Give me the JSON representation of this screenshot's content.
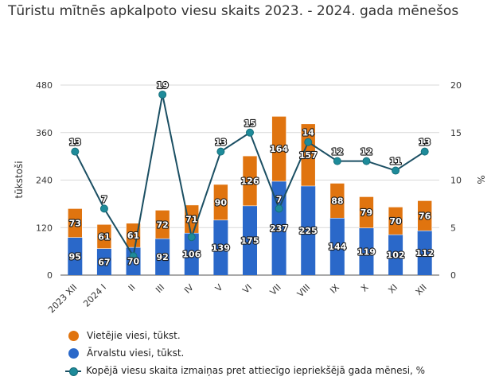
{
  "title": "Tūristu mītnēs apkalpoto viesu skaits 2023. - 2024. gada mēnešos",
  "colors": {
    "local": "#e0740f",
    "foreign": "#2a68c9",
    "line": "#1b4f63",
    "marker": "#1e8b9a",
    "grid": "#d9d9d9"
  },
  "legend": [
    {
      "label": "Vietējie viesi, tūkst.",
      "color": "#e0740f",
      "kind": "dot"
    },
    {
      "label": "Ārvalstu viesi, tūkst.",
      "color": "#2a68c9",
      "kind": "dot"
    },
    {
      "label": "Kopējā viesu skaita izmaiņas pret attiecīgo iepriekšējā gada mēnesi, %",
      "color": "#1b4f63",
      "kind": "line"
    }
  ],
  "chart_data": {
    "type": "bar",
    "stacked": true,
    "categories": [
      "2023 XII",
      "2024 I",
      "II",
      "III",
      "IV",
      "V",
      "VI",
      "VII",
      "VIII",
      "IX",
      "X",
      "XI",
      "XII"
    ],
    "series": [
      {
        "name": "Ārvalstu viesi, tūkst.",
        "values": [
          95,
          67,
          70,
          92,
          106,
          139,
          175,
          237,
          225,
          144,
          119,
          102,
          112
        ]
      },
      {
        "name": "Vietējie viesi, tūkst.",
        "values": [
          73,
          61,
          61,
          72,
          71,
          90,
          126,
          164,
          157,
          88,
          79,
          70,
          76
        ]
      }
    ],
    "line_series": {
      "name": "Kopējā viesu skaita izmaiņas pret attiecīgo iepriekšējā gada mēnesi, %",
      "values": [
        13,
        7,
        2,
        19,
        4,
        13,
        15,
        7,
        14,
        12,
        12,
        11,
        13
      ],
      "labels": [
        "13",
        "7",
        "",
        "19",
        "",
        "13",
        "15",
        "7",
        "14",
        "12",
        "12",
        "11",
        "13"
      ]
    },
    "ylabel": "tūkstoši",
    "y2label": "%",
    "ylim": [
      0,
      480
    ],
    "yticks": [
      "0",
      "120",
      "240",
      "360",
      "480"
    ],
    "y2lim": [
      0,
      20
    ],
    "y2ticks": [
      "0",
      "5",
      "10",
      "15",
      "20"
    ],
    "grid": true,
    "legend_position": "bottom"
  }
}
